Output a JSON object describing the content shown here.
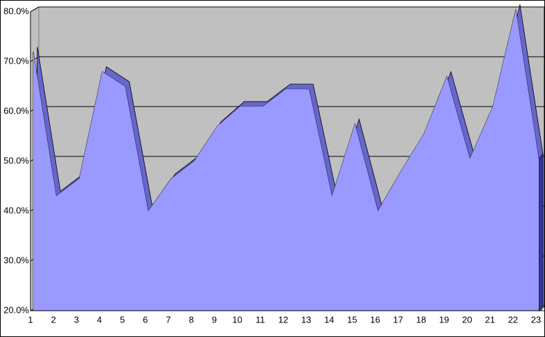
{
  "chart_data": {
    "type": "area",
    "categories": [
      "1",
      "2",
      "3",
      "4",
      "5",
      "6",
      "7",
      "8",
      "9",
      "10",
      "11",
      "12",
      "13",
      "14",
      "15",
      "16",
      "17",
      "18",
      "19",
      "20",
      "21",
      "22",
      "23"
    ],
    "values": [
      72,
      43,
      46.5,
      68,
      65,
      40,
      46.5,
      50,
      57,
      61,
      61,
      64.5,
      64.5,
      43,
      57.5,
      40,
      48,
      55.5,
      67,
      50.5,
      61,
      80.5,
      50.5
    ],
    "color": "#9999ff",
    "ylim": [
      20,
      80
    ],
    "yticks": [
      {
        "value": 20,
        "label": "20.0%"
      },
      {
        "value": 30,
        "label": "30.0%"
      },
      {
        "value": 40,
        "label": "40.0%"
      },
      {
        "value": 50,
        "label": "50.0%"
      },
      {
        "value": 60,
        "label": "60.0%"
      },
      {
        "value": 70,
        "label": "70.0%"
      },
      {
        "value": 80,
        "label": "80.0%"
      }
    ],
    "grid": true
  }
}
